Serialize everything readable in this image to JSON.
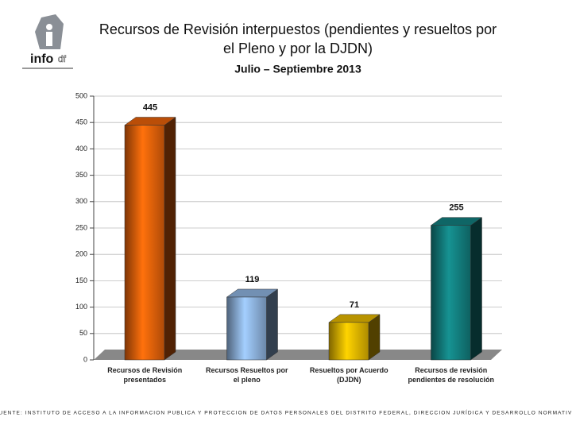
{
  "logo": {
    "name": "info",
    "suffix": "df"
  },
  "chart_data": {
    "type": "bar3d",
    "title": "Recursos de Revisión interpuestos (pendientes y resueltos por el Pleno y por la DJDN)",
    "subtitle": "Julio – Septiembre 2013",
    "categories": [
      "Recursos de Revisión presentados",
      "Recursos Resueltos por el pleno",
      "Resueltos por Acuerdo (DJDN)",
      "Recursos de revisión pendientes de resolución"
    ],
    "values": [
      445,
      119,
      71,
      255
    ],
    "colors": [
      "#e8620a",
      "#8fb4e0",
      "#e6b800",
      "#138080"
    ],
    "ylim": [
      0,
      500
    ],
    "yticks": [
      0,
      50,
      100,
      150,
      200,
      250,
      300,
      350,
      400,
      450,
      500
    ],
    "grid": true,
    "source": "FUENTE: INSTITUTO DE ACCESO A LA INFORMACION PUBLICA Y PROTECCION DE DATOS PERSONALES DEL DISTRITO FEDERAL, DIRECCION JURÍDICA Y DESARROLLO NORMATIVO"
  }
}
